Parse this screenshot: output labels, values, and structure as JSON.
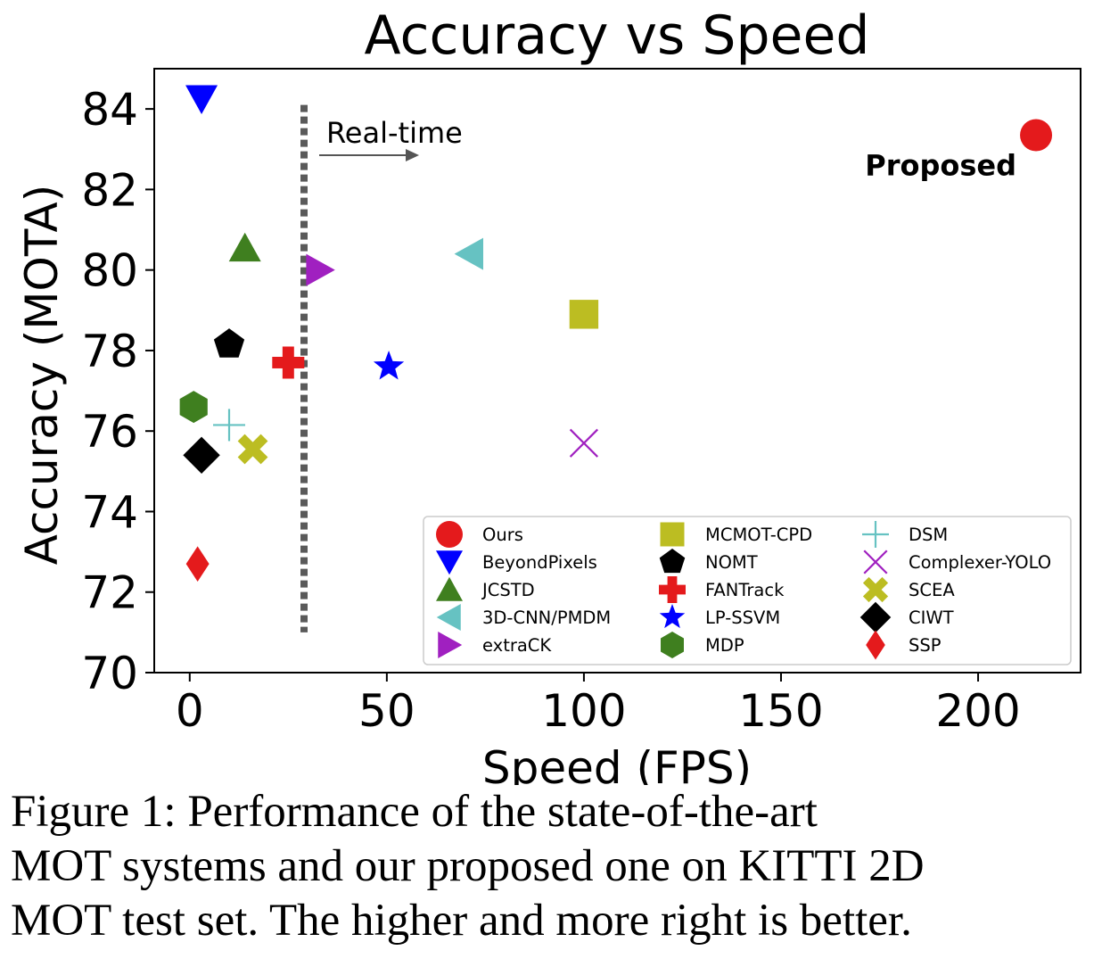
{
  "chart_data": {
    "type": "scatter",
    "title": "Accuracy vs Speed",
    "xlabel": "Speed (FPS)",
    "ylabel": "Accuracy (MOTA)",
    "xlim": [
      -9,
      226
    ],
    "ylim": [
      70,
      85
    ],
    "xticks": [
      0,
      50,
      100,
      150,
      200
    ],
    "yticks": [
      70,
      72,
      74,
      76,
      78,
      80,
      82,
      84
    ],
    "grid": false,
    "legend_position": "lower-right",
    "realtime": {
      "fps": 29,
      "label": "Real-time",
      "y_range": [
        71,
        84.1
      ]
    },
    "annotation": {
      "text": "Proposed",
      "series": "Ours"
    },
    "series": [
      {
        "name": "Ours",
        "x": 214.7,
        "y": 83.35,
        "marker": "circle",
        "color": "#e41a1c"
      },
      {
        "name": "BeyondPixels",
        "x": 3,
        "y": 84.25,
        "marker": "triangle-down",
        "color": "#0000ff"
      },
      {
        "name": "JCSTD",
        "x": 14,
        "y": 80.55,
        "marker": "triangle-up",
        "color": "#3f7f1f"
      },
      {
        "name": "3D-CNN/PMDM",
        "x": 71,
        "y": 80.4,
        "marker": "triangle-left",
        "color": "#66c2c2"
      },
      {
        "name": "extraCK",
        "x": 33,
        "y": 80.0,
        "marker": "triangle-right",
        "color": "#a020c0"
      },
      {
        "name": "MCMOT-CPD",
        "x": 100,
        "y": 78.9,
        "marker": "square",
        "color": "#bcbd22"
      },
      {
        "name": "NOMT",
        "x": 10,
        "y": 78.15,
        "marker": "pentagon",
        "color": "#000000"
      },
      {
        "name": "FANTrack",
        "x": 25,
        "y": 77.7,
        "marker": "plus-filled",
        "color": "#e41a1c"
      },
      {
        "name": "LP-SSVM",
        "x": 50.5,
        "y": 77.6,
        "marker": "star",
        "color": "#0000ff"
      },
      {
        "name": "MDP",
        "x": 1,
        "y": 76.6,
        "marker": "hexagon",
        "color": "#3f7f1f"
      },
      {
        "name": "DSM",
        "x": 10,
        "y": 76.15,
        "marker": "plus-thin",
        "color": "#66c2c2"
      },
      {
        "name": "Complexer-YOLO",
        "x": 100,
        "y": 75.7,
        "marker": "x-thin",
        "color": "#a020c0"
      },
      {
        "name": "SCEA",
        "x": 16,
        "y": 75.55,
        "marker": "x-filled",
        "color": "#bcbd22"
      },
      {
        "name": "CIWT",
        "x": 3,
        "y": 75.4,
        "marker": "diamond",
        "color": "#000000"
      },
      {
        "name": "SSP",
        "x": 2,
        "y": 72.7,
        "marker": "thin-diamond",
        "color": "#e41a1c"
      }
    ]
  },
  "caption": {
    "line1": "Figure 1:  Performance of the state-of-the-art",
    "line2": "MOT systems and our proposed one on KITTI 2D",
    "line3": "MOT test set. The higher and more right is better."
  }
}
